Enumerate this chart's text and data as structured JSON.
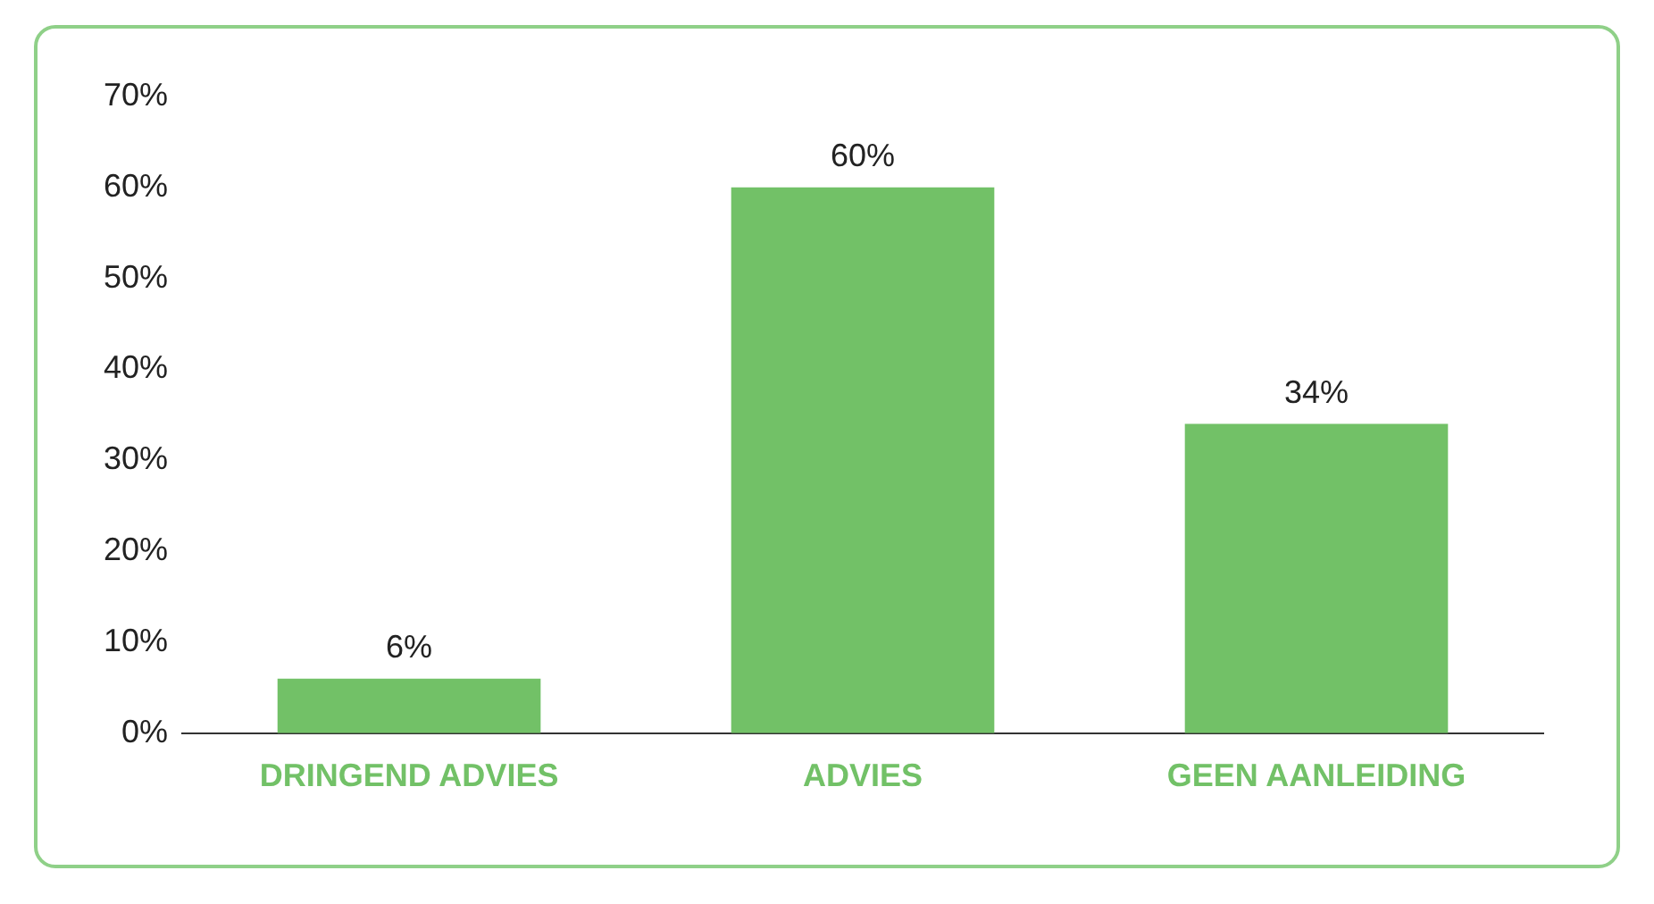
{
  "chart_data": {
    "type": "bar",
    "categories": [
      "DRINGEND ADVIES",
      "ADVIES",
      "GEEN AANLEIDING"
    ],
    "values": [
      6,
      60,
      34
    ],
    "color": "#72c167",
    "value_labels": [
      "6%",
      "60%",
      "34%"
    ],
    "ylim": [
      0,
      70
    ],
    "yticks": [
      {
        "value": 0,
        "label": "0%"
      },
      {
        "value": 10,
        "label": "10%"
      },
      {
        "value": 20,
        "label": "20%"
      },
      {
        "value": 30,
        "label": "30%"
      },
      {
        "value": 40,
        "label": "40%"
      },
      {
        "value": 50,
        "label": "50%"
      },
      {
        "value": 60,
        "label": "60%"
      },
      {
        "value": 70,
        "label": "70%"
      }
    ],
    "grid": false,
    "legend": false
  }
}
